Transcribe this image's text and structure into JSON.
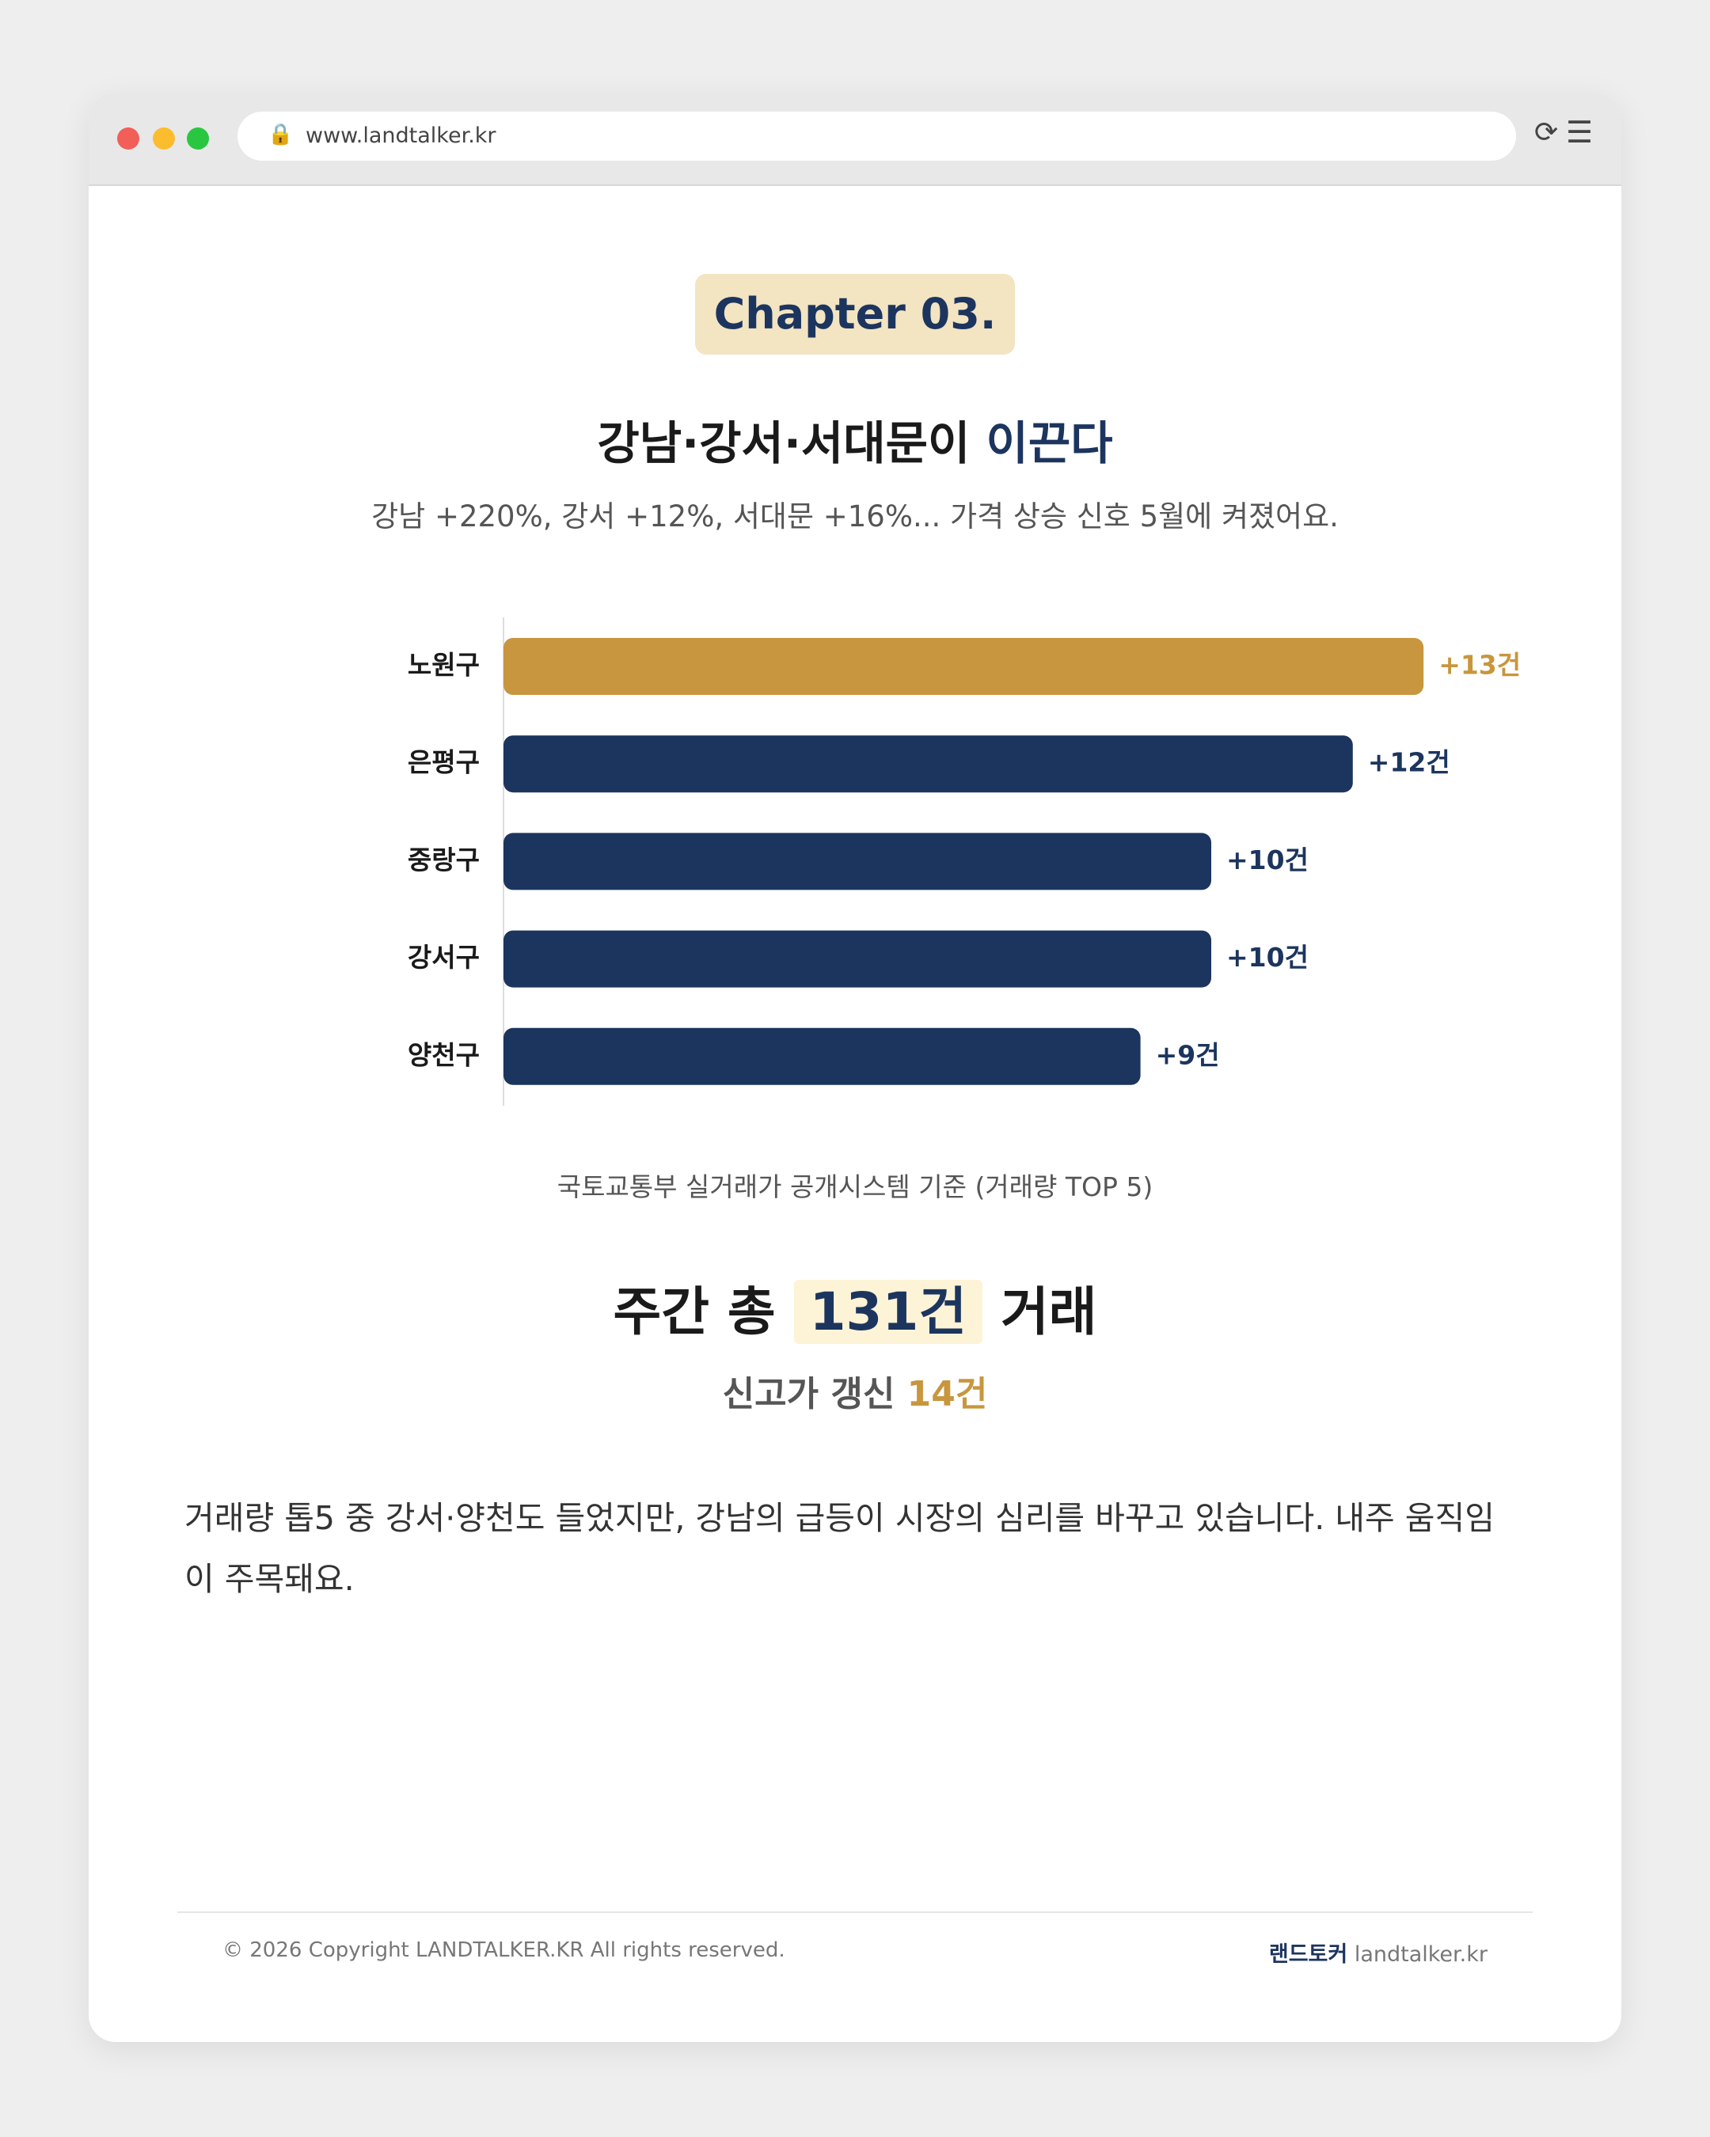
{
  "browser": {
    "url": "www.landtalker.kr"
  },
  "header": {
    "badge": "Chapter 03.",
    "title": "강남·강서·서대문이 ",
    "title_highlight": "이끈다",
    "subtitle": "강남 +220%, 강서 +12%, 서대문 +16%... 가격 상승 신호 5월에 켜졌어요."
  },
  "chart_data": {
    "type": "bar",
    "orientation": "horizontal",
    "categories": [
      "노원구",
      "은평구",
      "중랑구",
      "강서구",
      "양천구"
    ],
    "values": [
      13,
      12,
      10,
      10,
      9
    ],
    "value_labels": [
      "+13건",
      "+12건",
      "+10건",
      "+10건",
      "+9건"
    ],
    "colors": [
      "#c8963e",
      "#1c355e",
      "#1c355e",
      "#1c355e",
      "#1c355e"
    ],
    "caption": "국토교통부 실거래가 공개시스템 기준 (거래량 TOP 5)"
  },
  "stats": {
    "total_prefix": "주간 총 ",
    "total_value": "131건",
    "total_suffix": " 거래",
    "record_prefix": "신고가 갱신 ",
    "record_value": "14건"
  },
  "body": "거래량 톱5 중 강서·양천도 들었지만, 강남의 급등이 시장의 심리를 바꾸고 있습니다. 내주 움직임이 주목돼요.",
  "footer": {
    "copyright": "© 2026 Copyright LANDTALKER.KR All rights reserved.",
    "brand": "랜드토커",
    "site": "landtalker.kr"
  }
}
